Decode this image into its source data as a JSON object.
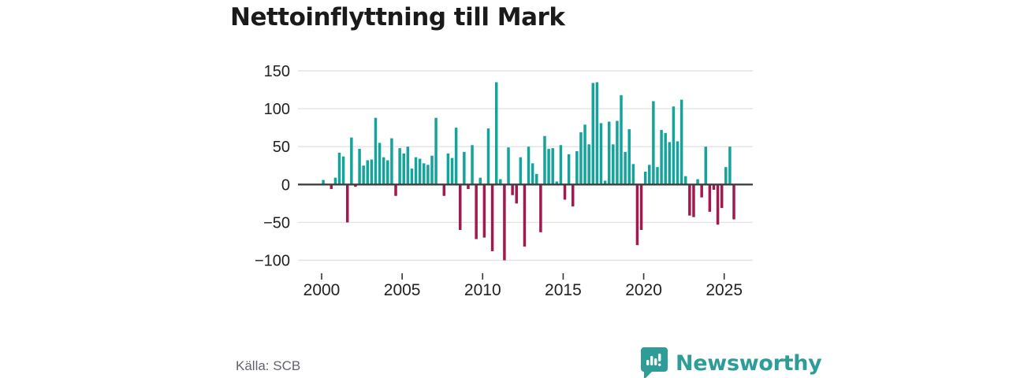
{
  "title": "Nettoinflyttning till Mark",
  "source": "Källa: SCB",
  "branding": {
    "name": "Newsworthy",
    "logo_icon": "speech-bubble-bar-chart-icon"
  },
  "colors": {
    "positive_bar": "#14a49b",
    "negative_bar": "#a01a50",
    "grid": "#e3e3e3",
    "zero_line": "#3f3f3f",
    "title_text": "#1a1a1a",
    "axis_text": "#222222",
    "tick_mark": "#333333",
    "source_text": "#63636e",
    "brand": "#2e9d98",
    "background": "#ffffff"
  },
  "chart_data": {
    "type": "bar",
    "title": "Nettoinflyttning till Mark",
    "xlabel": "",
    "ylabel": "",
    "frequency": "quarterly",
    "start": "2000 Q1",
    "end": "2025 Q3",
    "x_tick_labels": [
      "2000",
      "2005",
      "2010",
      "2015",
      "2020",
      "2025"
    ],
    "y_tick_labels": [
      "150",
      "100",
      "50",
      "0",
      "−50",
      "−100"
    ],
    "y_tick_values": [
      150,
      100,
      50,
      0,
      -50,
      -100
    ],
    "ylim": [
      -112,
      155
    ],
    "grid": true,
    "legend": false,
    "source": "SCB",
    "by_year": [
      {
        "year": 2000,
        "q": [
          6,
          0,
          -6,
          9
        ]
      },
      {
        "year": 2001,
        "q": [
          42,
          37,
          -50,
          62
        ]
      },
      {
        "year": 2002,
        "q": [
          -3,
          47,
          25,
          32
        ]
      },
      {
        "year": 2003,
        "q": [
          33,
          88,
          55,
          36
        ]
      },
      {
        "year": 2004,
        "q": [
          32,
          61,
          -15,
          48
        ]
      },
      {
        "year": 2005,
        "q": [
          41,
          50,
          21,
          36
        ]
      },
      {
        "year": 2006,
        "q": [
          34,
          28,
          26,
          38
        ]
      },
      {
        "year": 2007,
        "q": [
          88,
          0,
          -15,
          41
        ]
      },
      {
        "year": 2008,
        "q": [
          35,
          75,
          -60,
          43
        ]
      },
      {
        "year": 2009,
        "q": [
          -6,
          52,
          -72,
          9
        ]
      },
      {
        "year": 2010,
        "q": [
          -70,
          74,
          -88,
          135
        ]
      },
      {
        "year": 2011,
        "q": [
          7,
          -100,
          49,
          -14
        ]
      },
      {
        "year": 2012,
        "q": [
          -25,
          36,
          -82,
          50
        ]
      },
      {
        "year": 2013,
        "q": [
          28,
          14,
          -63,
          64
        ]
      },
      {
        "year": 2014,
        "q": [
          47,
          48,
          4,
          52
        ]
      },
      {
        "year": 2015,
        "q": [
          -20,
          40,
          -29,
          44
        ]
      },
      {
        "year": 2016,
        "q": [
          69,
          79,
          53,
          134
        ]
      },
      {
        "year": 2017,
        "q": [
          135,
          81,
          5,
          83
        ]
      },
      {
        "year": 2018,
        "q": [
          53,
          84,
          118,
          43
        ]
      },
      {
        "year": 2019,
        "q": [
          73,
          27,
          -80,
          -60
        ]
      },
      {
        "year": 2020,
        "q": [
          17,
          26,
          110,
          23
        ]
      },
      {
        "year": 2021,
        "q": [
          72,
          68,
          56,
          103
        ]
      },
      {
        "year": 2022,
        "q": [
          57,
          112,
          11,
          -41
        ]
      },
      {
        "year": 2023,
        "q": [
          -43,
          7,
          -17,
          50
        ]
      },
      {
        "year": 2024,
        "q": [
          -36,
          -7,
          -53,
          -31
        ]
      },
      {
        "year": 2025,
        "q": [
          23,
          50,
          -46
        ]
      }
    ]
  }
}
